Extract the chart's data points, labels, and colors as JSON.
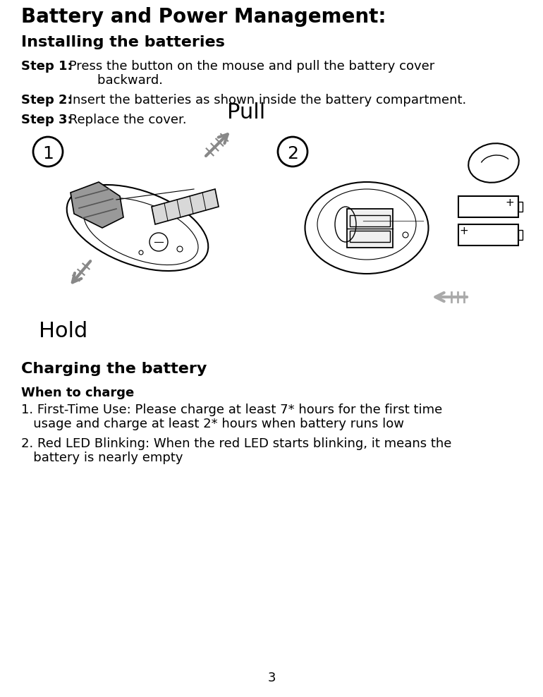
{
  "title": "Battery and Power Management:",
  "section1": "Installing the batteries",
  "step1_bold": "Step 1:",
  "step1_text": " Press the button on the mouse and pull the battery cover",
  "step1_cont": "        backward.",
  "step2_bold": "Step 2:",
  "step2_text": " Insert the batteries as shown inside the battery compartment.",
  "step3_bold": "Step 3:",
  "step3_text": " Replace the cover.",
  "pull_label": "Pull",
  "hold_label": "Hold",
  "section2": "Charging the battery",
  "when_bold": "When to charge",
  "item1a": "1. First-Time Use: Please charge at least 7* hours for the first time",
  "item1b": "   usage and charge at least 2* hours when battery runs low",
  "item2a": "2. Red LED Blinking: When the red LED starts blinking, it means the",
  "item2b": "   battery is nearly empty",
  "page_num": "3",
  "bg_color": "#ffffff",
  "text_color": "#000000",
  "title_fontsize": 20,
  "section_fontsize": 16,
  "body_fontsize": 13,
  "label_fontsize": 22
}
